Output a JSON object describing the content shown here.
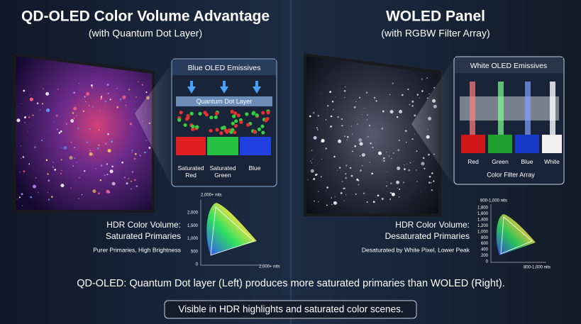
{
  "left": {
    "title": "QD-OLED Color Volume Advantage",
    "subtitle": "(with Quantum Dot Layer)",
    "inset": {
      "title": "Blue OLED Emissives",
      "layer": "Quantum Dot Layer",
      "labels": [
        "Saturated Red",
        "Saturated Green",
        "Blue"
      ]
    },
    "chart": {
      "heading": "HDR Color Volume:",
      "subheading": "Saturated Primaries",
      "note": "Purer Primaries, High Brightness",
      "y_axis_label": "2,000+ nits",
      "yticks": [
        "2,000",
        "1,500",
        "1,000",
        "500",
        "0"
      ],
      "x_axis_label": "2,000+ nits"
    }
  },
  "right": {
    "title": "WOLED Panel",
    "subtitle": "(with RGBW Filter Array)",
    "inset": {
      "title": "White OLED Emissives",
      "labels": [
        "Red",
        "Green",
        "Blue",
        "White"
      ],
      "filter_label": "Color Filter Array"
    },
    "chart": {
      "heading": "HDR Color Volume:",
      "subheading": "Desaturated Primaries",
      "note": "Desaturated by White Pixel, Lower Peak",
      "y_axis_label": "800-1,000 nits",
      "yticks": [
        "1,800",
        "1,600",
        "1,400",
        "1,200",
        "1,000",
        "800",
        "600",
        "400",
        "200",
        "0"
      ],
      "x_axis_label": "800-1,000 nits"
    }
  },
  "footer": {
    "caption": "QD-OLED: Quantum Dot layer (Left) produces more saturated primaries than WOLED (Right).",
    "note": "Visible in HDR highlights and saturated color scenes."
  }
}
